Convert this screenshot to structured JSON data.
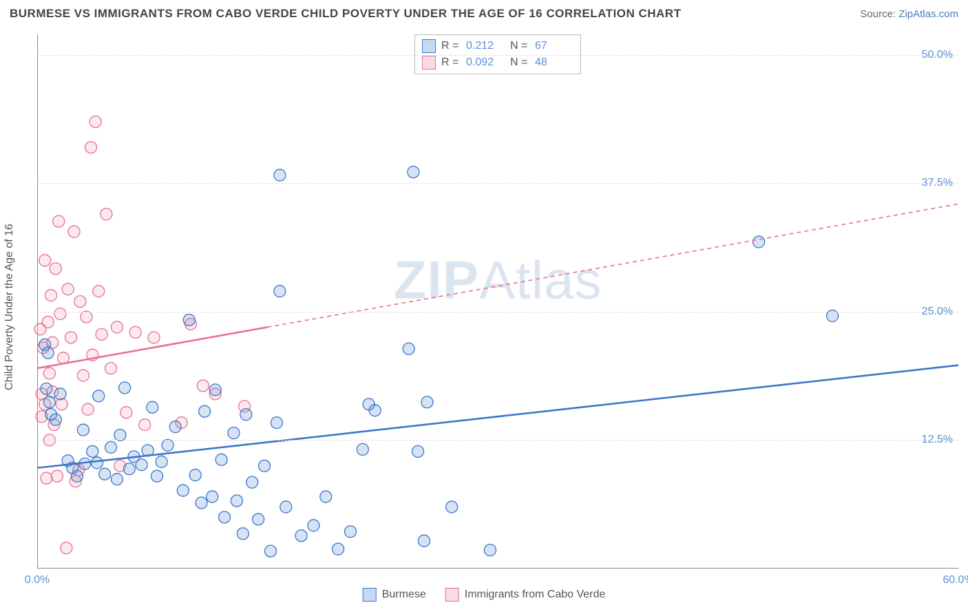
{
  "title": "BURMESE VS IMMIGRANTS FROM CABO VERDE CHILD POVERTY UNDER THE AGE OF 16 CORRELATION CHART",
  "source_prefix": "Source: ",
  "source_link": "ZipAtlas.com",
  "ylabel": "Child Poverty Under the Age of 16",
  "watermark_bold": "ZIP",
  "watermark_light": "Atlas",
  "chart": {
    "type": "scatter",
    "xlim": [
      0,
      60
    ],
    "ylim": [
      0,
      52
    ],
    "xticks": [
      {
        "v": 0,
        "label": "0.0%"
      },
      {
        "v": 60,
        "label": "60.0%"
      }
    ],
    "yticks": [
      {
        "v": 12.5,
        "label": "12.5%"
      },
      {
        "v": 25,
        "label": "25.0%"
      },
      {
        "v": 37.5,
        "label": "37.5%"
      },
      {
        "v": 50,
        "label": "50.0%"
      }
    ],
    "grid_color": "#dddddd",
    "background_color": "#ffffff",
    "marker_radius": 8.5,
    "marker_fill_opacity": 0.25,
    "marker_stroke_width": 1.3,
    "trend_line_width": 2.6,
    "trend_dash_pattern": "6 5"
  },
  "series": [
    {
      "id": "burmese",
      "label": "Burmese",
      "color": "#5b8fd6",
      "stroke": "#3b76c7",
      "R": "0.212",
      "N": "67",
      "trend": {
        "x1": 0,
        "y1": 9.8,
        "x2": 60,
        "y2": 19.8,
        "solid_until_x": 60
      },
      "points": [
        [
          0.5,
          21.8
        ],
        [
          0.6,
          17.5
        ],
        [
          0.8,
          16.2
        ],
        [
          0.9,
          15.0
        ],
        [
          2.0,
          10.5
        ],
        [
          2.3,
          9.8
        ],
        [
          2.6,
          9.0
        ],
        [
          3.1,
          10.2
        ],
        [
          3.6,
          11.4
        ],
        [
          3.9,
          10.3
        ],
        [
          4.4,
          9.2
        ],
        [
          4.8,
          11.8
        ],
        [
          5.2,
          8.7
        ],
        [
          5.4,
          13.0
        ],
        [
          5.7,
          17.6
        ],
        [
          6.0,
          9.7
        ],
        [
          6.3,
          10.9
        ],
        [
          6.8,
          10.1
        ],
        [
          7.2,
          11.5
        ],
        [
          7.5,
          15.7
        ],
        [
          7.8,
          9.0
        ],
        [
          8.1,
          10.4
        ],
        [
          8.5,
          12.0
        ],
        [
          9.0,
          13.8
        ],
        [
          9.5,
          7.6
        ],
        [
          9.9,
          24.2
        ],
        [
          10.3,
          9.1
        ],
        [
          10.7,
          6.4
        ],
        [
          10.9,
          15.3
        ],
        [
          11.4,
          7.0
        ],
        [
          11.6,
          17.4
        ],
        [
          12.0,
          10.6
        ],
        [
          12.2,
          5.0
        ],
        [
          12.8,
          13.2
        ],
        [
          13.0,
          6.6
        ],
        [
          13.4,
          3.4
        ],
        [
          13.6,
          15.0
        ],
        [
          14.0,
          8.4
        ],
        [
          14.4,
          4.8
        ],
        [
          14.8,
          10.0
        ],
        [
          15.2,
          1.7
        ],
        [
          15.6,
          14.2
        ],
        [
          15.8,
          38.3
        ],
        [
          15.8,
          27.0
        ],
        [
          16.2,
          6.0
        ],
        [
          17.2,
          3.2
        ],
        [
          18.0,
          4.2
        ],
        [
          18.8,
          7.0
        ],
        [
          19.6,
          1.9
        ],
        [
          20.4,
          3.6
        ],
        [
          21.2,
          11.6
        ],
        [
          21.6,
          16.0
        ],
        [
          22.0,
          15.4
        ],
        [
          24.2,
          21.4
        ],
        [
          24.5,
          38.6
        ],
        [
          24.8,
          11.4
        ],
        [
          25.2,
          2.7
        ],
        [
          25.4,
          16.2
        ],
        [
          27.0,
          6.0
        ],
        [
          29.5,
          1.8
        ],
        [
          47.0,
          31.8
        ],
        [
          51.8,
          24.6
        ],
        [
          3.0,
          13.5
        ],
        [
          4.0,
          16.8
        ],
        [
          0.7,
          21.0
        ],
        [
          1.2,
          14.5
        ],
        [
          1.5,
          17.0
        ]
      ]
    },
    {
      "id": "cabo_verde",
      "label": "Immigrants from Cabo Verde",
      "color": "#f0a7b7",
      "stroke": "#e8708e",
      "R": "0.092",
      "N": "48",
      "trend": {
        "x1": 0,
        "y1": 19.5,
        "x2": 60,
        "y2": 35.5,
        "solid_until_x": 15
      },
      "points": [
        [
          0.2,
          23.3
        ],
        [
          0.3,
          17.0
        ],
        [
          0.3,
          14.8
        ],
        [
          0.4,
          21.5
        ],
        [
          0.5,
          30.0
        ],
        [
          0.5,
          16.0
        ],
        [
          0.6,
          8.8
        ],
        [
          0.7,
          24.0
        ],
        [
          0.8,
          19.0
        ],
        [
          0.8,
          12.5
        ],
        [
          0.9,
          26.6
        ],
        [
          1.0,
          22.0
        ],
        [
          1.0,
          17.2
        ],
        [
          1.1,
          14.0
        ],
        [
          1.2,
          29.2
        ],
        [
          1.3,
          9.0
        ],
        [
          1.4,
          33.8
        ],
        [
          1.5,
          24.8
        ],
        [
          1.6,
          16.0
        ],
        [
          1.7,
          20.5
        ],
        [
          1.9,
          2.0
        ],
        [
          2.0,
          27.2
        ],
        [
          2.2,
          22.5
        ],
        [
          2.4,
          32.8
        ],
        [
          2.5,
          8.5
        ],
        [
          2.7,
          9.6
        ],
        [
          2.8,
          26.0
        ],
        [
          3.0,
          18.8
        ],
        [
          3.2,
          24.5
        ],
        [
          3.3,
          15.5
        ],
        [
          3.5,
          41.0
        ],
        [
          3.6,
          20.8
        ],
        [
          3.8,
          43.5
        ],
        [
          4.0,
          27.0
        ],
        [
          4.2,
          22.8
        ],
        [
          4.5,
          34.5
        ],
        [
          4.8,
          19.5
        ],
        [
          5.2,
          23.5
        ],
        [
          5.4,
          10.0
        ],
        [
          5.8,
          15.2
        ],
        [
          6.4,
          23.0
        ],
        [
          7.0,
          14.0
        ],
        [
          7.6,
          22.5
        ],
        [
          9.4,
          14.2
        ],
        [
          10.0,
          23.8
        ],
        [
          10.8,
          17.8
        ],
        [
          11.6,
          17.0
        ],
        [
          13.5,
          15.8
        ]
      ]
    }
  ],
  "legend_top_labels": {
    "R": "R =",
    "N": "N ="
  }
}
